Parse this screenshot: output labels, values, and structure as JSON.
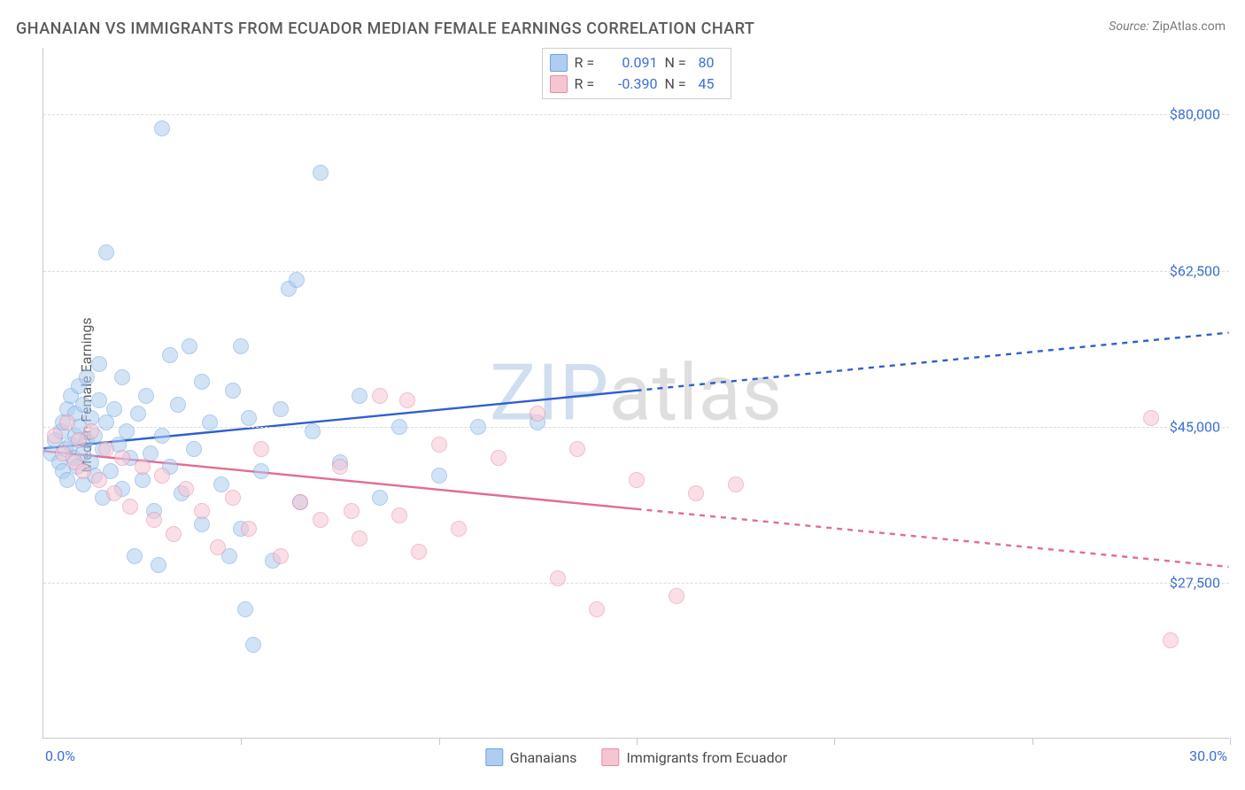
{
  "title": "GHANAIAN VS IMMIGRANTS FROM ECUADOR MEDIAN FEMALE EARNINGS CORRELATION CHART",
  "source_label": "Source:",
  "source_value": "ZipAtlas.com",
  "ylabel": "Median Female Earnings",
  "watermark_a": "ZIP",
  "watermark_b": "atlas",
  "watermark_color_a": "rgba(120,160,210,0.35)",
  "watermark_color_b": "rgba(160,160,160,0.35)",
  "chart": {
    "type": "scatter",
    "xlim": [
      0,
      30
    ],
    "ylim": [
      10000,
      87500
    ],
    "x_tick_step": 5,
    "x_label_min": "0.0%",
    "x_label_max": "30.0%",
    "y_gridlines": [
      27500,
      45000,
      62500,
      80000
    ],
    "y_labels": [
      "$27,500",
      "$45,000",
      "$62,500",
      "$80,000"
    ],
    "background_color": "#ffffff",
    "grid_color": "#dcdcdc",
    "axis_color": "#c9c9c9",
    "tick_label_color": "#3b6fd6",
    "marker_radius": 9,
    "marker_opacity": 0.55,
    "marker_stroke_width": 1.2,
    "trend_stroke_width": 2.4,
    "trend_dash": "6,6",
    "solid_trend_x_end": 15
  },
  "series": [
    {
      "name": "Ghanaians",
      "marker_fill": "#aecdf0",
      "marker_stroke": "#6fa3de",
      "swatch_fill": "#aecdf0",
      "swatch_stroke": "#6fa3de",
      "trend_color": "#2f5fd0",
      "r_value": "0.091",
      "n_value": "80",
      "trend_y_at_x0": 42500,
      "trend_y_at_x30": 55500,
      "points": [
        [
          0.2,
          42000
        ],
        [
          0.3,
          43500
        ],
        [
          0.4,
          41000
        ],
        [
          0.45,
          44500
        ],
        [
          0.5,
          40000
        ],
        [
          0.5,
          45500
        ],
        [
          0.55,
          42500
        ],
        [
          0.6,
          47000
        ],
        [
          0.6,
          39000
        ],
        [
          0.7,
          48500
        ],
        [
          0.7,
          43000
        ],
        [
          0.75,
          41500
        ],
        [
          0.8,
          46500
        ],
        [
          0.8,
          44000
        ],
        [
          0.85,
          40500
        ],
        [
          0.9,
          49500
        ],
        [
          0.9,
          45000
        ],
        [
          1.0,
          42000
        ],
        [
          1.0,
          38500
        ],
        [
          1.0,
          47500
        ],
        [
          1.1,
          43500
        ],
        [
          1.1,
          50500
        ],
        [
          1.2,
          41000
        ],
        [
          1.2,
          46000
        ],
        [
          1.3,
          44000
        ],
        [
          1.3,
          39500
        ],
        [
          1.4,
          48000
        ],
        [
          1.5,
          42500
        ],
        [
          1.5,
          37000
        ],
        [
          1.6,
          45500
        ],
        [
          1.7,
          40000
        ],
        [
          1.8,
          47000
        ],
        [
          1.9,
          43000
        ],
        [
          2.0,
          50500
        ],
        [
          2.0,
          38000
        ],
        [
          2.1,
          44500
        ],
        [
          2.2,
          41500
        ],
        [
          2.3,
          30500
        ],
        [
          2.4,
          46500
        ],
        [
          2.5,
          39000
        ],
        [
          2.6,
          48500
        ],
        [
          2.7,
          42000
        ],
        [
          2.8,
          35500
        ],
        [
          2.9,
          29500
        ],
        [
          3.0,
          44000
        ],
        [
          3.0,
          78500
        ],
        [
          1.4,
          52000
        ],
        [
          3.2,
          40500
        ],
        [
          3.4,
          47500
        ],
        [
          3.5,
          37500
        ],
        [
          3.7,
          54000
        ],
        [
          3.2,
          53000
        ],
        [
          3.8,
          42500
        ],
        [
          4.0,
          50000
        ],
        [
          4.0,
          34000
        ],
        [
          4.2,
          45500
        ],
        [
          4.5,
          38500
        ],
        [
          4.8,
          49000
        ],
        [
          5.0,
          33500
        ],
        [
          5.2,
          46000
        ],
        [
          5.3,
          20500
        ],
        [
          5.5,
          40000
        ],
        [
          5.8,
          30000
        ],
        [
          6.0,
          47000
        ],
        [
          6.2,
          60500
        ],
        [
          6.4,
          61500
        ],
        [
          6.5,
          36500
        ],
        [
          6.8,
          44500
        ],
        [
          7.0,
          73500
        ],
        [
          1.6,
          64500
        ],
        [
          7.5,
          41000
        ],
        [
          8.0,
          48500
        ],
        [
          8.5,
          37000
        ],
        [
          9.0,
          45000
        ],
        [
          5.1,
          24500
        ],
        [
          10.0,
          39500
        ],
        [
          5.0,
          54000
        ],
        [
          11.0,
          45000
        ],
        [
          12.5,
          45500
        ],
        [
          4.7,
          30500
        ]
      ]
    },
    {
      "name": "Immigrants from Ecuador",
      "marker_fill": "#f6c5d2",
      "marker_stroke": "#e88aa5",
      "swatch_fill": "#f6c5d2",
      "swatch_stroke": "#e88aa5",
      "trend_color": "#e36b94",
      "r_value": "-0.390",
      "n_value": "45",
      "trend_y_at_x0": 42200,
      "trend_y_at_x30": 29200,
      "points": [
        [
          0.3,
          44000
        ],
        [
          0.5,
          42000
        ],
        [
          0.6,
          45500
        ],
        [
          0.8,
          41000
        ],
        [
          0.9,
          43500
        ],
        [
          1.0,
          40000
        ],
        [
          1.2,
          44500
        ],
        [
          1.4,
          39000
        ],
        [
          1.6,
          42500
        ],
        [
          1.8,
          37500
        ],
        [
          2.0,
          41500
        ],
        [
          2.2,
          36000
        ],
        [
          2.5,
          40500
        ],
        [
          2.8,
          34500
        ],
        [
          3.0,
          39500
        ],
        [
          3.3,
          33000
        ],
        [
          3.6,
          38000
        ],
        [
          4.0,
          35500
        ],
        [
          4.4,
          31500
        ],
        [
          4.8,
          37000
        ],
        [
          5.2,
          33500
        ],
        [
          5.5,
          42500
        ],
        [
          6.0,
          30500
        ],
        [
          6.5,
          36500
        ],
        [
          7.0,
          34500
        ],
        [
          7.5,
          40500
        ],
        [
          8.0,
          32500
        ],
        [
          8.5,
          48500
        ],
        [
          9.0,
          35000
        ],
        [
          9.5,
          31000
        ],
        [
          10.0,
          43000
        ],
        [
          10.5,
          33500
        ],
        [
          11.5,
          41500
        ],
        [
          12.5,
          46500
        ],
        [
          13.0,
          28000
        ],
        [
          13.5,
          42500
        ],
        [
          14.0,
          24500
        ],
        [
          15.0,
          39000
        ],
        [
          16.0,
          26000
        ],
        [
          16.5,
          37500
        ],
        [
          17.5,
          38500
        ],
        [
          28.0,
          46000
        ],
        [
          28.5,
          21000
        ],
        [
          9.2,
          48000
        ],
        [
          7.8,
          35500
        ]
      ]
    }
  ],
  "legend_top": {
    "r_label": "R =",
    "n_label": "N ="
  },
  "legend_bottom": {
    "items": [
      "Ghanaians",
      "Immigrants from Ecuador"
    ]
  }
}
